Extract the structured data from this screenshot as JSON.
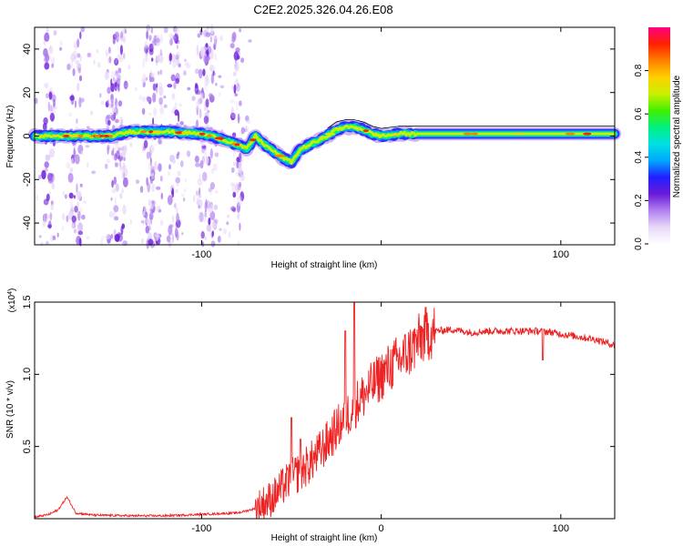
{
  "title": "C2E2.2025.326.04.26.E08",
  "colors": {
    "signal_line": "#ee2222",
    "colormap": [
      "#ffffff",
      "#e8d8f8",
      "#b080f0",
      "#6a1ad8",
      "#2020ff",
      "#00a8ff",
      "#00e0e0",
      "#00f080",
      "#40f000",
      "#c8f000",
      "#ffd000",
      "#ff8000",
      "#ff2000",
      "#ff0080"
    ]
  },
  "chart_data": [
    {
      "type": "heatmap",
      "xlabel": "Height of straight line (km)",
      "ylabel": "Frequency (Hz)",
      "xlim": [
        -193,
        130
      ],
      "ylim": [
        -50,
        50
      ],
      "xticks": [
        -100,
        0,
        100
      ],
      "xtick_labels": [
        "-100",
        "",
        "100"
      ],
      "yticks": [
        -40,
        -20,
        0,
        20,
        40
      ],
      "ytick_labels": [
        "-40",
        "-20",
        "0",
        "20",
        "40"
      ],
      "ridge": {
        "x": [
          -193,
          -150,
          -140,
          -120,
          -100,
          -90,
          -80,
          -75,
          -70,
          -65,
          -60,
          -55,
          -50,
          -45,
          -40,
          -35,
          -30,
          -25,
          -20,
          -15,
          -10,
          -5,
          0,
          10,
          20,
          40,
          60,
          100,
          130
        ],
        "y": [
          0,
          0,
          2,
          2,
          1,
          -1,
          -4,
          -6,
          0,
          -4,
          -7,
          -10,
          -12,
          -6,
          -4,
          -2,
          0,
          3,
          4,
          4,
          3,
          1,
          0,
          1,
          1,
          1,
          1,
          1,
          1
        ]
      },
      "noise_columns_x": [
        -185,
        -170,
        -150,
        -145,
        -130,
        -125,
        -115,
        -100,
        -95,
        -80
      ],
      "colorbar": {
        "label": "Normalized spectral amplitude",
        "range": [
          0,
          1
        ],
        "ticks": [
          0.0,
          0.2,
          0.4,
          0.6,
          0.8
        ],
        "tick_labels": [
          "0.0",
          "0.2",
          "0.4",
          "0.6",
          "0.8"
        ]
      }
    },
    {
      "type": "line",
      "xlabel": "Height of straight line (km)",
      "ylabel": "SNR (10 * v/v)",
      "multiplier_label": "(x10",
      "multiplier_exponent": "4",
      "multiplier_close": ")",
      "xlim": [
        -193,
        130
      ],
      "ylim": [
        0,
        15000
      ],
      "xticks": [
        -100,
        0,
        100
      ],
      "xtick_labels": [
        "-100",
        "0",
        "100"
      ],
      "yticks": [
        5000,
        10000,
        15000
      ],
      "ytick_labels": [
        "0.5",
        "1.0",
        "1.5"
      ],
      "series": [
        {
          "x": [
            -193,
            -185,
            -180,
            -175,
            -170,
            -160,
            -140,
            -120,
            -100,
            -80,
            -70,
            -65,
            -60,
            -55,
            -50,
            -45,
            -40,
            -35,
            -30,
            -25,
            -20,
            -15,
            -10,
            -5,
            0,
            5,
            10,
            15,
            20,
            25,
            30,
            40,
            50,
            60,
            70,
            80,
            90,
            100,
            110,
            120,
            130
          ],
          "y": [
            100,
            300,
            600,
            1500,
            400,
            250,
            200,
            200,
            300,
            400,
            700,
            1100,
            1500,
            2200,
            2800,
            3300,
            3800,
            4500,
            5300,
            6200,
            7000,
            7800,
            8500,
            9200,
            9900,
            10500,
            11000,
            11500,
            12200,
            12800,
            13000,
            13100,
            12900,
            13000,
            13000,
            13000,
            13000,
            12800,
            12600,
            12400,
            12000
          ],
          "spikes": [
            {
              "x": -50,
              "y": 7000
            },
            {
              "x": -45,
              "y": 5500
            },
            {
              "x": -20,
              "y": 13000
            },
            {
              "x": -15,
              "y": 15000
            },
            {
              "x": 90,
              "y": 11000
            }
          ]
        }
      ]
    }
  ]
}
